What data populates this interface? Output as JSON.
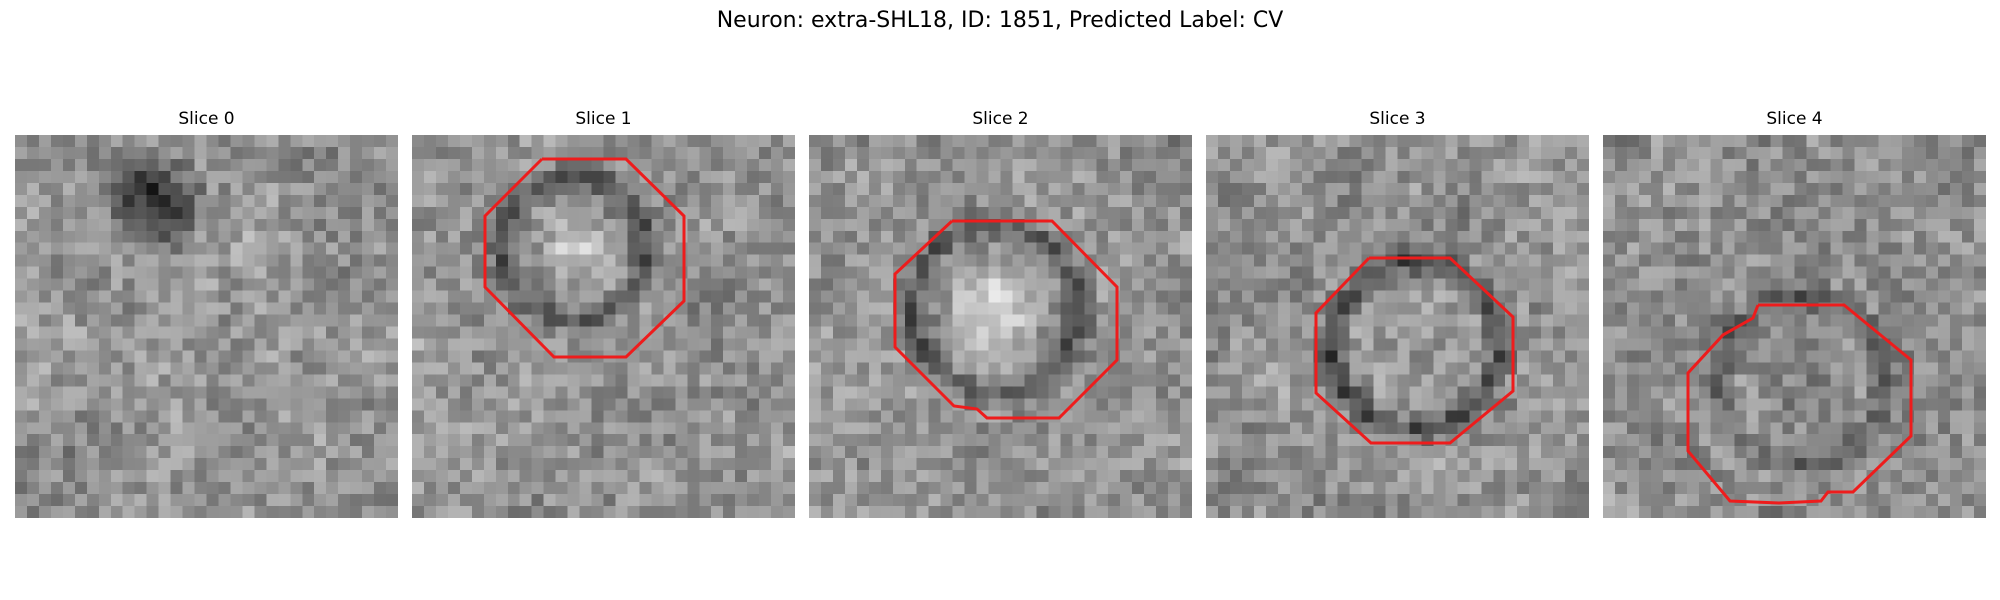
{
  "figure": {
    "title": "Neuron: extra-SHL18, ID: 1851, Predicted Label: CV"
  },
  "colors": {
    "contour": "#ee1c1c",
    "colormap": "grayscale"
  },
  "slices": [
    {
      "title": "Slice 0",
      "has_contour": false,
      "seed": 11
    },
    {
      "title": "Slice 1",
      "has_contour": true,
      "seed": 23
    },
    {
      "title": "Slice 2",
      "has_contour": true,
      "seed": 37
    },
    {
      "title": "Slice 3",
      "has_contour": true,
      "seed": 41
    },
    {
      "title": "Slice 4",
      "has_contour": true,
      "seed": 59
    }
  ]
}
